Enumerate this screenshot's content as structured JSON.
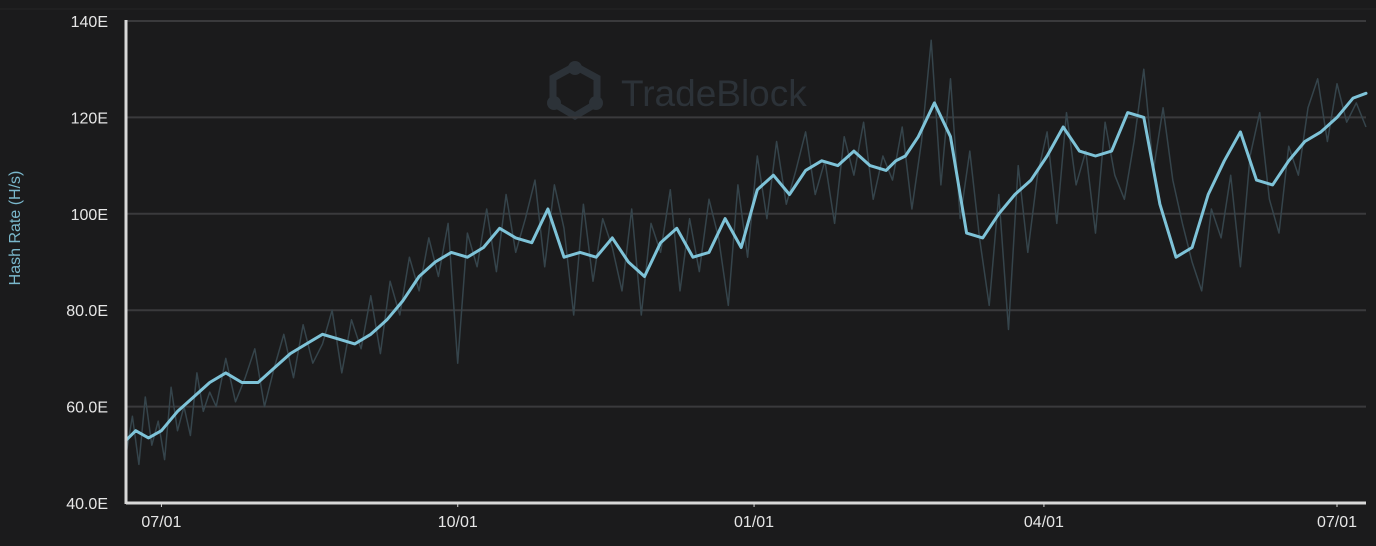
{
  "chart_data": {
    "type": "line",
    "title": "",
    "watermark": "TradeBlock",
    "ylabel": "Hash Rate (H/s)",
    "xlabel": "",
    "ylim": [
      40,
      140
    ],
    "xlim": [
      -11,
      374
    ],
    "y_ticks": [
      {
        "value": 40,
        "label": "40.0E"
      },
      {
        "value": 60,
        "label": "60.0E"
      },
      {
        "value": 80,
        "label": "80.0E"
      },
      {
        "value": 100,
        "label": "100E"
      },
      {
        "value": 120,
        "label": "120E"
      },
      {
        "value": 140,
        "label": "140E"
      }
    ],
    "x_ticks": [
      {
        "value": 0,
        "label": "07/01"
      },
      {
        "value": 92,
        "label": "10/01"
      },
      {
        "value": 184,
        "label": "01/01"
      },
      {
        "value": 274,
        "label": "04/01"
      },
      {
        "value": 365,
        "label": "07/01"
      }
    ],
    "grid": true,
    "legend": "none",
    "colors": {
      "background": "#1b1b1c",
      "grid": "#3a3a3c",
      "axis": "#d8d8d8",
      "smoothed": "#7ec3d8",
      "raw": "#35444b",
      "watermark": "#2c3238"
    },
    "series": [
      {
        "role": "smoothed",
        "x": [
          -11,
          -8,
          -4,
          0,
          5,
          10,
          15,
          20,
          25,
          30,
          35,
          40,
          45,
          50,
          55,
          60,
          65,
          70,
          75,
          80,
          85,
          90,
          95,
          100,
          105,
          110,
          115,
          120,
          125,
          130,
          135,
          140,
          145,
          150,
          155,
          160,
          165,
          170,
          175,
          180,
          185,
          190,
          195,
          200,
          205,
          210,
          215,
          220,
          225,
          228,
          231,
          235,
          240,
          245,
          250,
          255,
          260,
          265,
          270,
          275,
          280,
          285,
          290,
          295,
          300,
          305,
          310,
          315,
          320,
          325,
          330,
          335,
          340,
          345,
          350,
          355,
          360,
          365,
          370,
          374
        ],
        "y": [
          53,
          55,
          53.5,
          55,
          59,
          62,
          65,
          67,
          65,
          65,
          68,
          71,
          73,
          75,
          74,
          73,
          75,
          78,
          82,
          87,
          90,
          92,
          91,
          93,
          97,
          95,
          94,
          101,
          91,
          92,
          91,
          95,
          90,
          87,
          94,
          97,
          91,
          92,
          99,
          93,
          105,
          108,
          104,
          109,
          111,
          110,
          113,
          110,
          109,
          111,
          112,
          116,
          123,
          116,
          96,
          95,
          100,
          104,
          107,
          112,
          118,
          113,
          112,
          113,
          121,
          120,
          102,
          91,
          93,
          104,
          111,
          117,
          107,
          106,
          111,
          115,
          117,
          120,
          124,
          125
        ]
      },
      {
        "role": "raw",
        "x": [
          -11,
          -9,
          -7,
          -5,
          -3,
          -1,
          1,
          3,
          5,
          7,
          9,
          11,
          13,
          15,
          17,
          20,
          23,
          26,
          29,
          32,
          35,
          38,
          41,
          44,
          47,
          50,
          53,
          56,
          59,
          62,
          65,
          68,
          71,
          74,
          77,
          80,
          83,
          86,
          89,
          92,
          95,
          98,
          101,
          104,
          107,
          110,
          113,
          116,
          119,
          122,
          125,
          128,
          131,
          134,
          137,
          140,
          143,
          146,
          149,
          152,
          155,
          158,
          161,
          164,
          167,
          170,
          173,
          176,
          179,
          182,
          185,
          188,
          191,
          194,
          197,
          200,
          203,
          206,
          209,
          212,
          215,
          218,
          221,
          224,
          227,
          230,
          233,
          236,
          239,
          242,
          245,
          248,
          251,
          254,
          257,
          260,
          263,
          266,
          269,
          272,
          275,
          278,
          281,
          284,
          287,
          290,
          293,
          296,
          299,
          302,
          305,
          308,
          311,
          314,
          317,
          320,
          323,
          326,
          329,
          332,
          335,
          338,
          341,
          344,
          347,
          350,
          353,
          356,
          359,
          362,
          365,
          368,
          371,
          374
        ],
        "y": [
          50,
          58,
          48,
          62,
          52,
          57,
          49,
          64,
          55,
          60,
          54,
          67,
          59,
          63,
          60,
          70,
          61,
          66,
          72,
          60,
          68,
          75,
          66,
          77,
          69,
          73,
          80,
          67,
          78,
          72,
          83,
          71,
          86,
          79,
          91,
          84,
          95,
          87,
          98,
          69,
          96,
          89,
          101,
          88,
          104,
          92,
          99,
          107,
          89,
          106,
          97,
          79,
          102,
          86,
          99,
          93,
          84,
          101,
          79,
          98,
          92,
          105,
          84,
          99,
          88,
          103,
          95,
          81,
          106,
          91,
          112,
          99,
          115,
          102,
          109,
          117,
          104,
          111,
          98,
          116,
          108,
          119,
          103,
          112,
          107,
          118,
          101,
          115,
          136,
          106,
          128,
          99,
          113,
          95,
          81,
          104,
          76,
          110,
          92,
          108,
          117,
          98,
          121,
          106,
          113,
          96,
          119,
          108,
          103,
          115,
          130,
          109,
          122,
          107,
          98,
          90,
          84,
          101,
          95,
          108,
          89,
          112,
          121,
          103,
          96,
          114,
          108,
          122,
          128,
          115,
          127,
          119,
          123,
          118
        ]
      }
    ]
  }
}
